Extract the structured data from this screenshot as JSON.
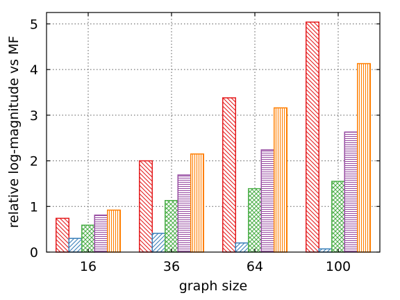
{
  "chart_data": {
    "type": "bar",
    "categories": [
      "16",
      "36",
      "64",
      "100"
    ],
    "series": [
      {
        "values": [
          0.74,
          2.0,
          3.38,
          5.04
        ],
        "color": "#e41a1c",
        "pattern": "diag-down"
      },
      {
        "values": [
          0.3,
          0.41,
          0.2,
          0.07
        ],
        "color": "#377eb8",
        "pattern": "diag-up"
      },
      {
        "values": [
          0.59,
          1.13,
          1.39,
          1.55
        ],
        "color": "#4daf4a",
        "pattern": "crosshatch"
      },
      {
        "values": [
          0.81,
          1.69,
          2.24,
          2.63
        ],
        "color": "#984ea3",
        "pattern": "horizontal"
      },
      {
        "values": [
          0.92,
          2.15,
          3.16,
          4.13
        ],
        "color": "#ff7f00",
        "pattern": "vertical"
      }
    ],
    "xlabel": "graph size",
    "ylabel": "relative log-magnitude vs MF",
    "ylim": [
      0,
      5.25
    ],
    "yticks": [
      "0",
      "1",
      "2",
      "3",
      "4",
      "5"
    ],
    "grid": true,
    "legend": "none"
  }
}
